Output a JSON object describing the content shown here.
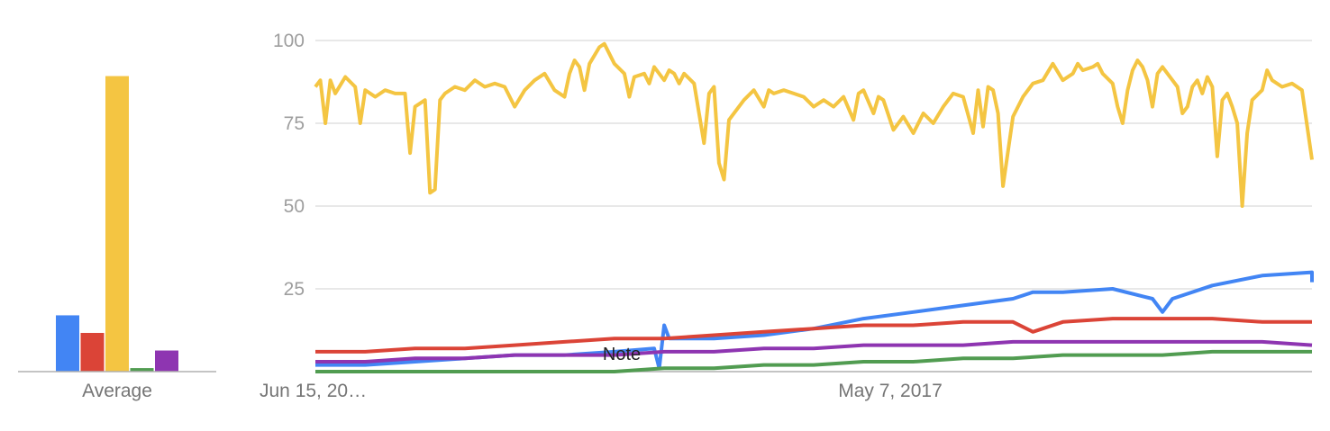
{
  "chart_data": [
    {
      "type": "bar",
      "xlabel": "Average",
      "series": [
        {
          "color": "#4285f4",
          "value": 16
        },
        {
          "color": "#db4437",
          "value": 11
        },
        {
          "color": "#f4c542",
          "value": 84
        },
        {
          "color": "#519c51",
          "value": 1
        },
        {
          "color": "#8e35b1",
          "value": 6
        }
      ],
      "ylim": [
        0,
        100
      ]
    },
    {
      "type": "line",
      "yticks": [
        "25",
        "50",
        "75",
        "100"
      ],
      "ylim": [
        0,
        100
      ],
      "grid": true,
      "x_tick_labels": [
        "Jun 15, 20…",
        "May 7, 2017"
      ],
      "annotation": "Note",
      "series": [
        {
          "color": "#f4c542",
          "points": [
            [
              0,
              86
            ],
            [
              0.005,
              88
            ],
            [
              0.01,
              75
            ],
            [
              0.015,
              88
            ],
            [
              0.02,
              84
            ],
            [
              0.03,
              89
            ],
            [
              0.04,
              86
            ],
            [
              0.045,
              75
            ],
            [
              0.05,
              85
            ],
            [
              0.06,
              83
            ],
            [
              0.07,
              85
            ],
            [
              0.08,
              84
            ],
            [
              0.09,
              84
            ],
            [
              0.095,
              66
            ],
            [
              0.1,
              80
            ],
            [
              0.11,
              82
            ],
            [
              0.115,
              54
            ],
            [
              0.12,
              55
            ],
            [
              0.125,
              82
            ],
            [
              0.13,
              84
            ],
            [
              0.14,
              86
            ],
            [
              0.15,
              85
            ],
            [
              0.16,
              88
            ],
            [
              0.17,
              86
            ],
            [
              0.18,
              87
            ],
            [
              0.19,
              86
            ],
            [
              0.2,
              80
            ],
            [
              0.21,
              85
            ],
            [
              0.22,
              88
            ],
            [
              0.23,
              90
            ],
            [
              0.24,
              85
            ],
            [
              0.25,
              83
            ],
            [
              0.255,
              90
            ],
            [
              0.26,
              94
            ],
            [
              0.265,
              92
            ],
            [
              0.27,
              85
            ],
            [
              0.275,
              93
            ],
            [
              0.285,
              98
            ],
            [
              0.29,
              99
            ],
            [
              0.3,
              93
            ],
            [
              0.31,
              90
            ],
            [
              0.315,
              83
            ],
            [
              0.32,
              89
            ],
            [
              0.33,
              90
            ],
            [
              0.335,
              87
            ],
            [
              0.34,
              92
            ],
            [
              0.35,
              88
            ],
            [
              0.355,
              91
            ],
            [
              0.36,
              90
            ],
            [
              0.365,
              87
            ],
            [
              0.37,
              90
            ],
            [
              0.38,
              87
            ],
            [
              0.39,
              69
            ],
            [
              0.395,
              84
            ],
            [
              0.4,
              86
            ],
            [
              0.405,
              63
            ],
            [
              0.41,
              58
            ],
            [
              0.415,
              76
            ],
            [
              0.43,
              82
            ],
            [
              0.44,
              85
            ],
            [
              0.45,
              80
            ],
            [
              0.455,
              85
            ],
            [
              0.46,
              84
            ],
            [
              0.47,
              85
            ],
            [
              0.48,
              84
            ],
            [
              0.49,
              83
            ],
            [
              0.5,
              80
            ],
            [
              0.51,
              82
            ],
            [
              0.52,
              80
            ],
            [
              0.53,
              83
            ],
            [
              0.54,
              76
            ],
            [
              0.545,
              84
            ],
            [
              0.55,
              85
            ],
            [
              0.56,
              78
            ],
            [
              0.565,
              83
            ],
            [
              0.57,
              82
            ],
            [
              0.58,
              73
            ],
            [
              0.59,
              77
            ],
            [
              0.6,
              72
            ],
            [
              0.61,
              78
            ],
            [
              0.62,
              75
            ],
            [
              0.63,
              80
            ],
            [
              0.64,
              84
            ],
            [
              0.65,
              83
            ],
            [
              0.66,
              72
            ],
            [
              0.665,
              85
            ],
            [
              0.67,
              74
            ],
            [
              0.675,
              86
            ],
            [
              0.68,
              85
            ],
            [
              0.685,
              78
            ],
            [
              0.69,
              56
            ],
            [
              0.7,
              77
            ],
            [
              0.71,
              83
            ],
            [
              0.72,
              87
            ],
            [
              0.73,
              88
            ],
            [
              0.74,
              93
            ],
            [
              0.75,
              88
            ],
            [
              0.76,
              90
            ],
            [
              0.765,
              93
            ],
            [
              0.77,
              91
            ],
            [
              0.78,
              92
            ],
            [
              0.785,
              93
            ],
            [
              0.79,
              90
            ],
            [
              0.8,
              87
            ],
            [
              0.805,
              80
            ],
            [
              0.81,
              75
            ],
            [
              0.815,
              85
            ],
            [
              0.82,
              91
            ],
            [
              0.825,
              94
            ],
            [
              0.83,
              92
            ],
            [
              0.835,
              88
            ],
            [
              0.84,
              80
            ],
            [
              0.845,
              90
            ],
            [
              0.85,
              92
            ],
            [
              0.86,
              88
            ],
            [
              0.865,
              86
            ],
            [
              0.87,
              78
            ],
            [
              0.875,
              80
            ],
            [
              0.88,
              86
            ],
            [
              0.885,
              88
            ],
            [
              0.89,
              84
            ],
            [
              0.895,
              89
            ],
            [
              0.9,
              86
            ],
            [
              0.905,
              65
            ],
            [
              0.91,
              82
            ],
            [
              0.915,
              84
            ],
            [
              0.92,
              80
            ],
            [
              0.925,
              75
            ],
            [
              0.93,
              50
            ],
            [
              0.935,
              72
            ],
            [
              0.94,
              82
            ],
            [
              0.95,
              85
            ],
            [
              0.955,
              91
            ],
            [
              0.96,
              88
            ],
            [
              0.97,
              86
            ],
            [
              0.98,
              87
            ],
            [
              0.99,
              85
            ],
            [
              1,
              64
            ]
          ]
        },
        {
          "color": "#4285f4",
          "points": [
            [
              0,
              2
            ],
            [
              0.05,
              2
            ],
            [
              0.1,
              3
            ],
            [
              0.15,
              4
            ],
            [
              0.2,
              5
            ],
            [
              0.25,
              5
            ],
            [
              0.3,
              6
            ],
            [
              0.34,
              7
            ],
            [
              0.345,
              1
            ],
            [
              0.35,
              14
            ],
            [
              0.355,
              10
            ],
            [
              0.4,
              10
            ],
            [
              0.45,
              11
            ],
            [
              0.5,
              13
            ],
            [
              0.55,
              16
            ],
            [
              0.6,
              18
            ],
            [
              0.65,
              20
            ],
            [
              0.7,
              22
            ],
            [
              0.72,
              24
            ],
            [
              0.75,
              24
            ],
            [
              0.8,
              25
            ],
            [
              0.84,
              22
            ],
            [
              0.85,
              18
            ],
            [
              0.86,
              22
            ],
            [
              0.9,
              26
            ],
            [
              0.95,
              29
            ],
            [
              1,
              30
            ],
            [
              1,
              27
            ]
          ]
        },
        {
          "color": "#db4437",
          "points": [
            [
              0,
              6
            ],
            [
              0.05,
              6
            ],
            [
              0.1,
              7
            ],
            [
              0.15,
              7
            ],
            [
              0.2,
              8
            ],
            [
              0.25,
              9
            ],
            [
              0.3,
              10
            ],
            [
              0.35,
              10
            ],
            [
              0.4,
              11
            ],
            [
              0.45,
              12
            ],
            [
              0.5,
              13
            ],
            [
              0.55,
              14
            ],
            [
              0.6,
              14
            ],
            [
              0.65,
              15
            ],
            [
              0.7,
              15
            ],
            [
              0.72,
              12
            ],
            [
              0.75,
              15
            ],
            [
              0.8,
              16
            ],
            [
              0.85,
              16
            ],
            [
              0.9,
              16
            ],
            [
              0.95,
              15
            ],
            [
              1,
              15
            ]
          ]
        },
        {
          "color": "#8e35b1",
          "points": [
            [
              0,
              3
            ],
            [
              0.05,
              3
            ],
            [
              0.1,
              4
            ],
            [
              0.15,
              4
            ],
            [
              0.2,
              5
            ],
            [
              0.25,
              5
            ],
            [
              0.3,
              5
            ],
            [
              0.35,
              6
            ],
            [
              0.4,
              6
            ],
            [
              0.45,
              7
            ],
            [
              0.5,
              7
            ],
            [
              0.55,
              8
            ],
            [
              0.6,
              8
            ],
            [
              0.65,
              8
            ],
            [
              0.7,
              9
            ],
            [
              0.75,
              9
            ],
            [
              0.8,
              9
            ],
            [
              0.85,
              9
            ],
            [
              0.9,
              9
            ],
            [
              0.95,
              9
            ],
            [
              1,
              8
            ]
          ]
        },
        {
          "color": "#519c51",
          "points": [
            [
              0,
              0
            ],
            [
              0.1,
              0
            ],
            [
              0.2,
              0
            ],
            [
              0.3,
              0
            ],
            [
              0.35,
              1
            ],
            [
              0.4,
              1
            ],
            [
              0.45,
              2
            ],
            [
              0.5,
              2
            ],
            [
              0.55,
              3
            ],
            [
              0.6,
              3
            ],
            [
              0.65,
              4
            ],
            [
              0.7,
              4
            ],
            [
              0.75,
              5
            ],
            [
              0.8,
              5
            ],
            [
              0.85,
              5
            ],
            [
              0.9,
              6
            ],
            [
              0.95,
              6
            ],
            [
              1,
              6
            ]
          ]
        }
      ]
    }
  ]
}
